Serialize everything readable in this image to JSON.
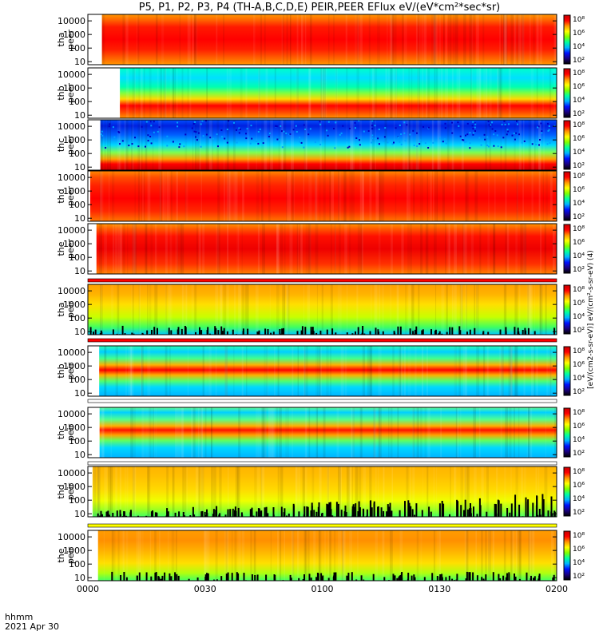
{
  "chart_data": {
    "type": "heatmap",
    "title": "P5, P1, P2, P3, P4 (TH-A,B,C,D,E) PEIR,PEER EFlux eV/(eV*cm²*sec*sr)",
    "date_label": "2021 Apr 30",
    "time_format_label": "hhmm",
    "x_ticks": [
      "0000",
      "0030",
      "0100",
      "0130",
      "0200"
    ],
    "x_range_minutes": [
      0,
      120
    ],
    "y_scale": "log",
    "y_range_eV": [
      6,
      30000
    ],
    "y_tick_labels": [
      "10000",
      "1000",
      "100",
      "10"
    ],
    "colorscale": [
      "#000000",
      "#1a0080",
      "#0010ff",
      "#00b4ff",
      "#00ffa0",
      "#7fff00",
      "#ffff00",
      "#ff9600",
      "#ff0000",
      "#c80000"
    ],
    "panels": [
      {
        "probe": "tha",
        "species": "peer",
        "colorbar_ticks": [
          "10⁸",
          "10⁶",
          "10⁴",
          "10²"
        ],
        "colorbar_label": "eV/(cm²-s-sr-eV) (4)",
        "data_start_min": 3.6
      },
      {
        "probe": "thb",
        "species": "peer",
        "colorbar_ticks": [
          "10⁸",
          "10⁶",
          "10⁴",
          "10²"
        ],
        "colorbar_label": "eV/(cm²-s-sr-eV) (4)",
        "data_start_min": 8.2
      },
      {
        "probe": "thc",
        "species": "peer",
        "colorbar_ticks": [
          "10⁸",
          "10⁶",
          "10⁴",
          "10²"
        ],
        "colorbar_label": "eV/(cm²-s-sr-eV) (4)",
        "data_start_min": 3.2
      },
      {
        "probe": "thd",
        "species": "peer",
        "colorbar_ticks": [
          "10⁸",
          "10⁶",
          "10⁴",
          "10²"
        ],
        "colorbar_label": "eV/(cm²-s-sr-eV) (4)",
        "data_start_min": 0.6
      },
      {
        "probe": "the",
        "species": "peer",
        "colorbar_ticks": [
          "10⁸",
          "10⁶",
          "10⁴",
          "10²"
        ],
        "colorbar_label": "eV/(cm²-s-sr-eV) (4)",
        "data_start_min": 2.2
      },
      {
        "probe": "tha",
        "species": "peir",
        "colorbar_ticks": [
          "10⁸",
          "10⁶",
          "10⁴",
          "10²"
        ],
        "colorbar_label": "eV/(cm²-s-sr-eV) (4)",
        "data_start_min": 0.1
      },
      {
        "probe": "thb",
        "species": "peir",
        "colorbar_ticks": [
          "10⁸",
          "10⁶",
          "10⁴",
          "10²"
        ],
        "colorbar_label": "eV/(cm²-s-sr-eV) (4)",
        "data_start_min": 2.9
      },
      {
        "probe": "thc",
        "species": "peir",
        "colorbar_ticks": [
          "10⁸",
          "10⁶",
          "10⁴",
          "10²"
        ],
        "colorbar_label": "eV/(cm²-s-sr-eV) (4)",
        "data_start_min": 3.0
      },
      {
        "probe": "thd",
        "species": "peir",
        "colorbar_ticks": [
          "10⁸",
          "10⁶",
          "10⁴",
          "10²"
        ],
        "colorbar_label": "eV/(cm²-s-sr-eV) (4)",
        "data_start_min": 1.2
      },
      {
        "probe": "the",
        "species": "peir",
        "colorbar_ticks": [
          "10⁸",
          "10⁶",
          "10⁴",
          "10²"
        ],
        "colorbar_label": "eV/(cm²-s-sr-eV) (4)",
        "data_start_min": 2.6
      }
    ],
    "colorbar_axis_label": "[eV/(cm2-s-sr-eV)] eV/(cm²-s-sr-eV) (4)"
  }
}
